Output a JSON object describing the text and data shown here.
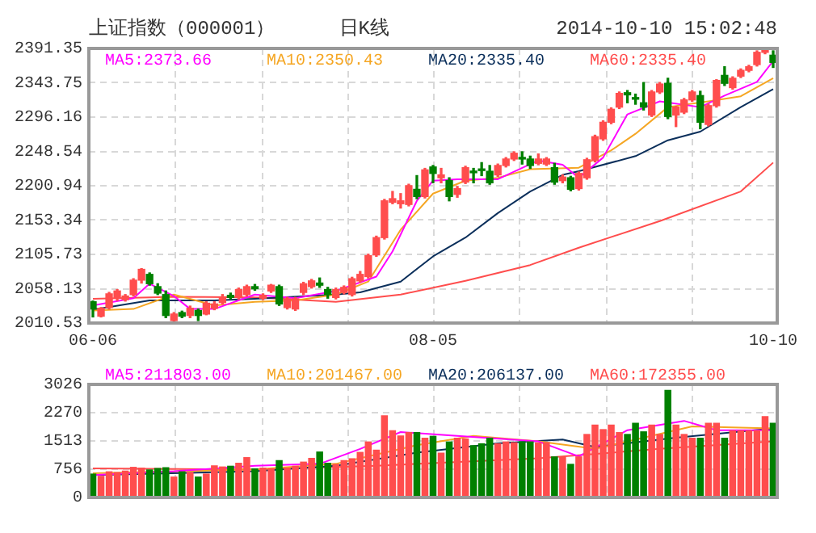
{
  "chart_data": [
    {
      "type": "candlestick",
      "title": "日K线",
      "subtitle": "上证指数（000001）",
      "annotations": [
        "2014-10-10 15:02:48"
      ],
      "categories": [
        "06-06",
        null,
        null,
        null,
        null,
        null,
        null,
        null,
        null,
        null,
        null,
        null,
        null,
        null,
        null,
        null,
        null,
        null,
        null,
        null,
        null,
        null,
        null,
        null,
        null,
        null,
        null,
        null,
        null,
        null,
        null,
        null,
        null,
        null,
        null,
        null,
        null,
        null,
        null,
        null,
        null,
        null,
        "08-05",
        null,
        null,
        null,
        null,
        null,
        null,
        null,
        null,
        null,
        null,
        null,
        null,
        null,
        null,
        null,
        null,
        null,
        null,
        null,
        null,
        null,
        null,
        null,
        null,
        null,
        null,
        null,
        null,
        null,
        null,
        null,
        null,
        null,
        null,
        null,
        null,
        null,
        null,
        null,
        null,
        null,
        "10-10"
      ],
      "ohlc": [
        [
          2040,
          2041,
          2019,
          2030
        ],
        [
          2020,
          2032,
          2019,
          2031
        ],
        [
          2032,
          2053,
          2030,
          2051
        ],
        [
          2045,
          2057,
          2042,
          2055
        ],
        [
          2043,
          2050,
          2041,
          2048
        ],
        [
          2050,
          2072,
          2048,
          2070
        ],
        [
          2070,
          2086,
          2066,
          2085
        ],
        [
          2078,
          2080,
          2063,
          2065
        ],
        [
          2061,
          2065,
          2050,
          2052
        ],
        [
          2050,
          2055,
          2018,
          2021
        ],
        [
          2014,
          2025,
          2011,
          2023
        ],
        [
          2025,
          2027,
          2018,
          2020
        ],
        [
          2021,
          2034,
          2018,
          2031
        ],
        [
          2028,
          2030,
          2014,
          2021
        ],
        [
          2023,
          2040,
          2022,
          2038
        ],
        [
          2031,
          2040,
          2029,
          2037
        ],
        [
          2039,
          2050,
          2037,
          2046
        ],
        [
          2049,
          2052,
          2044,
          2046
        ],
        [
          2046,
          2059,
          2044,
          2057
        ],
        [
          2050,
          2063,
          2048,
          2061
        ],
        [
          2061,
          2064,
          2056,
          2058
        ],
        [
          2045,
          2051,
          2043,
          2049
        ],
        [
          2055,
          2064,
          2053,
          2063
        ],
        [
          2061,
          2063,
          2035,
          2037
        ],
        [
          2032,
          2046,
          2030,
          2044
        ],
        [
          2030,
          2046,
          2028,
          2044
        ],
        [
          2053,
          2067,
          2050,
          2065
        ],
        [
          2061,
          2071,
          2059,
          2069
        ],
        [
          2066,
          2073,
          2060,
          2063
        ],
        [
          2057,
          2060,
          2045,
          2050
        ],
        [
          2046,
          2059,
          2044,
          2057
        ],
        [
          2053,
          2062,
          2051,
          2060
        ],
        [
          2050,
          2074,
          2048,
          2072
        ],
        [
          2069,
          2082,
          2067,
          2078
        ],
        [
          2075,
          2106,
          2073,
          2104
        ],
        [
          2105,
          2131,
          2103,
          2129
        ],
        [
          2129,
          2182,
          2127,
          2180
        ],
        [
          2178,
          2193,
          2176,
          2183
        ],
        [
          2176,
          2190,
          2170,
          2180
        ],
        [
          2175,
          2203,
          2173,
          2201
        ],
        [
          2196,
          2215,
          2183,
          2186
        ],
        [
          2186,
          2225,
          2184,
          2223
        ],
        [
          2227,
          2229,
          2205,
          2218
        ],
        [
          2212,
          2225,
          2205,
          2216
        ],
        [
          2208,
          2212,
          2180,
          2186
        ],
        [
          2189,
          2200,
          2185,
          2197
        ],
        [
          2206,
          2228,
          2204,
          2226
        ],
        [
          2221,
          2225,
          2205,
          2219
        ],
        [
          2224,
          2233,
          2215,
          2222
        ],
        [
          2221,
          2229,
          2203,
          2205
        ],
        [
          2216,
          2231,
          2214,
          2229
        ],
        [
          2229,
          2240,
          2227,
          2238
        ],
        [
          2238,
          2248,
          2236,
          2246
        ],
        [
          2240,
          2248,
          2231,
          2238
        ],
        [
          2238,
          2242,
          2225,
          2229
        ],
        [
          2232,
          2245,
          2230,
          2238
        ],
        [
          2231,
          2240,
          2229,
          2238
        ],
        [
          2226,
          2232,
          2203,
          2206
        ],
        [
          2208,
          2216,
          2205,
          2213
        ],
        [
          2212,
          2214,
          2194,
          2196
        ],
        [
          2197,
          2220,
          2195,
          2218
        ],
        [
          2212,
          2239,
          2210,
          2237
        ],
        [
          2236,
          2271,
          2234,
          2269
        ],
        [
          2266,
          2291,
          2264,
          2289
        ],
        [
          2289,
          2309,
          2287,
          2307
        ],
        [
          2310,
          2331,
          2308,
          2329
        ],
        [
          2330,
          2333,
          2316,
          2327
        ],
        [
          2322,
          2328,
          2314,
          2321
        ],
        [
          2316,
          2344,
          2306,
          2310
        ],
        [
          2299,
          2333,
          2297,
          2331
        ],
        [
          2331,
          2344,
          2329,
          2342
        ],
        [
          2343,
          2350,
          2294,
          2297
        ],
        [
          2299,
          2311,
          2283,
          2310
        ],
        [
          2303,
          2322,
          2301,
          2320
        ],
        [
          2320,
          2333,
          2318,
          2331
        ],
        [
          2326,
          2332,
          2280,
          2289
        ],
        [
          2286,
          2314,
          2284,
          2312
        ],
        [
          2312,
          2348,
          2310,
          2347
        ],
        [
          2354,
          2366,
          2340,
          2343
        ],
        [
          2337,
          2352,
          2335,
          2350
        ],
        [
          2353,
          2363,
          2351,
          2361
        ],
        [
          2361,
          2368,
          2359,
          2366
        ],
        [
          2369,
          2388,
          2367,
          2386
        ],
        [
          2386,
          2391,
          2384,
          2390
        ],
        [
          2382,
          2388,
          2365,
          2372
        ]
      ],
      "colors": [
        "#008000",
        "#ff4d4d",
        "#ff4d4d",
        "#ff4d4d",
        "#ff4d4d",
        "#ff4d4d",
        "#ff4d4d",
        "#008000",
        "#008000",
        "#008000",
        "#ff4d4d",
        "#008000",
        "#ff4d4d",
        "#008000",
        "#ff4d4d",
        "#ff4d4d",
        "#ff4d4d",
        "#008000",
        "#ff4d4d",
        "#ff4d4d",
        "#008000",
        "#ff4d4d",
        "#ff4d4d",
        "#008000",
        "#ff4d4d",
        "#ff4d4d",
        "#ff4d4d",
        "#ff4d4d",
        "#008000",
        "#008000",
        "#ff4d4d",
        "#ff4d4d",
        "#ff4d4d",
        "#ff4d4d",
        "#ff4d4d",
        "#ff4d4d",
        "#ff4d4d",
        "#ff4d4d",
        "#ff4d4d",
        "#ff4d4d",
        "#008000",
        "#ff4d4d",
        "#008000",
        "#ff4d4d",
        "#008000",
        "#ff4d4d",
        "#ff4d4d",
        "#008000",
        "#008000",
        "#008000",
        "#ff4d4d",
        "#ff4d4d",
        "#ff4d4d",
        "#008000",
        "#008000",
        "#ff4d4d",
        "#ff4d4d",
        "#008000",
        "#ff4d4d",
        "#008000",
        "#ff4d4d",
        "#ff4d4d",
        "#ff4d4d",
        "#ff4d4d",
        "#ff4d4d",
        "#ff4d4d",
        "#008000",
        "#008000",
        "#008000",
        "#ff4d4d",
        "#ff4d4d",
        "#008000",
        "#ff4d4d",
        "#ff4d4d",
        "#ff4d4d",
        "#008000",
        "#ff4d4d",
        "#ff4d4d",
        "#008000",
        "#ff4d4d",
        "#ff4d4d",
        "#ff4d4d",
        "#ff4d4d",
        "#ff4d4d",
        "#008000"
      ],
      "series": [
        {
          "type": "line",
          "name": "MA5:2373.66",
          "color": "#ff00ff",
          "values": [
            2035,
            null,
            null,
            null,
            null,
            2045,
            null,
            2065,
            null,
            null,
            2048,
            null,
            2030,
            null,
            null,
            2030,
            null,
            null,
            null,
            null,
            2050,
            null,
            null,
            null,
            null,
            2045,
            null,
            null,
            null,
            null,
            2055,
            null,
            null,
            null,
            null,
            2075,
            null,
            2110,
            null,
            null,
            2180,
            null,
            2208,
            null,
            null,
            2210,
            null,
            null,
            null,
            null,
            2210,
            null,
            null,
            null,
            null,
            2236,
            null,
            null,
            2230,
            null,
            2212,
            null,
            null,
            2240,
            null,
            null,
            2300,
            null,
            null,
            null,
            2318,
            null,
            null,
            null,
            null,
            2310,
            null,
            null,
            2326,
            null,
            null,
            null,
            2345,
            null,
            2374
          ]
        },
        {
          "type": "line",
          "name": "MA10:2350.43",
          "color": "#f5a623",
          "values": [
            2028,
            null,
            null,
            null,
            null,
            2030,
            null,
            null,
            null,
            null,
            2050,
            null,
            null,
            null,
            null,
            2035,
            null,
            null,
            null,
            null,
            2040,
            null,
            null,
            null,
            null,
            2042,
            null,
            null,
            null,
            null,
            2050,
            null,
            null,
            null,
            2068,
            null,
            null,
            null,
            2140,
            null,
            null,
            null,
            2190,
            null,
            null,
            null,
            2208,
            null,
            null,
            null,
            2212,
            null,
            null,
            null,
            2224,
            null,
            null,
            null,
            null,
            null,
            2226,
            null,
            null,
            null,
            2250,
            null,
            null,
            2273,
            null,
            null,
            null,
            2310,
            null,
            null,
            null,
            null,
            2318,
            null,
            null,
            null,
            2325,
            null,
            null,
            null,
            2350
          ]
        },
        {
          "type": "line",
          "name": "MA20:2335.40",
          "color": "#0b2f5b",
          "values": [
            2029,
            null,
            null,
            null,
            null,
            null,
            null,
            2042,
            null,
            null,
            null,
            null,
            null,
            null,
            null,
            2042,
            null,
            null,
            null,
            null,
            2044,
            null,
            null,
            null,
            null,
            null,
            null,
            null,
            null,
            null,
            2050,
            null,
            null,
            2053,
            null,
            null,
            null,
            null,
            2068,
            null,
            null,
            null,
            2103,
            null,
            null,
            null,
            2129,
            null,
            null,
            null,
            2163,
            null,
            null,
            null,
            2193,
            null,
            null,
            null,
            2216,
            null,
            2221,
            null,
            null,
            null,
            null,
            null,
            null,
            2242,
            null,
            null,
            null,
            2264,
            null,
            null,
            null,
            2276,
            null,
            null,
            null,
            null,
            2310,
            null,
            null,
            null,
            2335
          ]
        },
        {
          "type": "line",
          "name": "MA60:2335.40",
          "color": "#ff4d4d",
          "values": [
            2044,
            null,
            null,
            null,
            null,
            null,
            null,
            null,
            null,
            null,
            2047,
            null,
            null,
            null,
            null,
            null,
            null,
            null,
            null,
            null,
            2046,
            null,
            null,
            null,
            null,
            null,
            null,
            null,
            null,
            null,
            2040,
            null,
            null,
            null,
            null,
            null,
            null,
            null,
            2050,
            null,
            null,
            null,
            null,
            null,
            null,
            null,
            2069,
            null,
            null,
            null,
            null,
            null,
            null,
            null,
            2091,
            null,
            null,
            null,
            null,
            null,
            2115,
            null,
            null,
            null,
            null,
            null,
            null,
            null,
            null,
            null,
            2152,
            null,
            null,
            null,
            null,
            null,
            null,
            null,
            null,
            null,
            2193,
            null,
            null,
            null,
            2233
          ]
        }
      ],
      "ylim": [
        2010.53,
        2391.35
      ],
      "yticks": [
        2010.53,
        2058.13,
        2105.73,
        2153.34,
        2200.94,
        2248.54,
        2296.16,
        2343.75,
        2391.35
      ],
      "grid": true,
      "legend": "top"
    },
    {
      "type": "bar",
      "categories": [
        null,
        null,
        null,
        null,
        null,
        null,
        null,
        null,
        null,
        null,
        null,
        null,
        null,
        null,
        null,
        null,
        null,
        null,
        null,
        null,
        null,
        null,
        null,
        null,
        null,
        null,
        null,
        null,
        null,
        null,
        null,
        null,
        null,
        null,
        null,
        null,
        null,
        null,
        null,
        null,
        null,
        null,
        null,
        null,
        null,
        null,
        null,
        null,
        null,
        null,
        null,
        null,
        null,
        null,
        null,
        null,
        null,
        null,
        null,
        null,
        null,
        null,
        null,
        null,
        null,
        null,
        null,
        null,
        null,
        null,
        null,
        null,
        null,
        null,
        null,
        null,
        null,
        null,
        null,
        null,
        null,
        null,
        null,
        null,
        null
      ],
      "series": [
        {
          "colors": [
            "#008000",
            "#ff4d4d",
            "#ff4d4d",
            "#ff4d4d",
            "#ff4d4d",
            "#ff4d4d",
            "#ff4d4d",
            "#008000",
            "#008000",
            "#008000",
            "#ff4d4d",
            "#008000",
            "#ff4d4d",
            "#008000",
            "#ff4d4d",
            "#ff4d4d",
            "#ff4d4d",
            "#008000",
            "#ff4d4d",
            "#ff4d4d",
            "#008000",
            "#ff4d4d",
            "#ff4d4d",
            "#008000",
            "#ff4d4d",
            "#ff4d4d",
            "#ff4d4d",
            "#ff4d4d",
            "#008000",
            "#008000",
            "#ff4d4d",
            "#ff4d4d",
            "#ff4d4d",
            "#ff4d4d",
            "#ff4d4d",
            "#ff4d4d",
            "#ff4d4d",
            "#ff4d4d",
            "#ff4d4d",
            "#ff4d4d",
            "#008000",
            "#ff4d4d",
            "#008000",
            "#ff4d4d",
            "#008000",
            "#ff4d4d",
            "#ff4d4d",
            "#008000",
            "#008000",
            "#008000",
            "#ff4d4d",
            "#ff4d4d",
            "#ff4d4d",
            "#008000",
            "#008000",
            "#ff4d4d",
            "#ff4d4d",
            "#008000",
            "#ff4d4d",
            "#008000",
            "#ff4d4d",
            "#ff4d4d",
            "#ff4d4d",
            "#ff4d4d",
            "#ff4d4d",
            "#ff4d4d",
            "#008000",
            "#008000",
            "#008000",
            "#ff4d4d",
            "#ff4d4d",
            "#008000",
            "#ff4d4d",
            "#ff4d4d",
            "#ff4d4d",
            "#008000",
            "#ff4d4d",
            "#ff4d4d",
            "#008000",
            "#ff4d4d",
            "#ff4d4d",
            "#ff4d4d",
            "#ff4d4d",
            "#ff4d4d",
            "#008000"
          ],
          "values": [
            640,
            580,
            700,
            680,
            720,
            820,
            800,
            750,
            790,
            810,
            560,
            700,
            680,
            560,
            640,
            860,
            830,
            850,
            930,
            1080,
            780,
            800,
            780,
            1000,
            800,
            850,
            960,
            1060,
            1230,
            930,
            900,
            1000,
            1050,
            1220,
            1500,
            1280,
            2200,
            1800,
            1660,
            1750,
            1750,
            1600,
            1650,
            1200,
            1500,
            1600,
            1580,
            1400,
            1450,
            1600,
            1450,
            1500,
            1480,
            1500,
            1500,
            1470,
            1480,
            1100,
            1090,
            900,
            1100,
            1700,
            1950,
            1830,
            1950,
            1750,
            1700,
            2000,
            1770,
            1950,
            1700,
            2880,
            1950,
            1700,
            1600,
            1600,
            2000,
            2000,
            1600,
            1800,
            1800,
            1800,
            1800,
            2180,
            2000
          ]
        },
        {
          "type": "line",
          "name": "MA5:211803.00",
          "color": "#ff00ff",
          "values": [
            600,
            null,
            null,
            null,
            null,
            null,
            null,
            null,
            null,
            null,
            700,
            null,
            null,
            null,
            null,
            null,
            null,
            null,
            null,
            null,
            850,
            null,
            null,
            null,
            null,
            null,
            null,
            null,
            900,
            null,
            null,
            null,
            null,
            1300,
            null,
            null,
            null,
            null,
            1750,
            null,
            null,
            null,
            null,
            null,
            null,
            1650,
            null,
            null,
            null,
            null,
            null,
            null,
            null,
            null,
            null,
            1500,
            null,
            null,
            null,
            null,
            1100,
            null,
            null,
            null,
            null,
            null,
            1800,
            null,
            null,
            null,
            null,
            null,
            null,
            2050,
            null,
            null,
            null,
            1800,
            null,
            null,
            null,
            null,
            null,
            null,
            1800
          ]
        },
        {
          "type": "line",
          "name": "MA10:201467.00",
          "color": "#f5a623",
          "values": [
            650,
            null,
            null,
            null,
            null,
            null,
            null,
            null,
            null,
            null,
            null,
            null,
            null,
            null,
            null,
            null,
            null,
            null,
            null,
            null,
            750,
            null,
            null,
            null,
            null,
            null,
            null,
            null,
            null,
            null,
            900,
            null,
            null,
            null,
            null,
            null,
            null,
            null,
            null,
            null,
            1400,
            null,
            null,
            null,
            null,
            null,
            null,
            1650,
            null,
            null,
            null,
            null,
            null,
            null,
            null,
            1500,
            null,
            null,
            null,
            null,
            null,
            null,
            1300,
            null,
            null,
            null,
            null,
            null,
            null,
            null,
            null,
            null,
            null,
            null,
            1900,
            null,
            null,
            null,
            null,
            null,
            null,
            null,
            null,
            null,
            1850
          ]
        },
        {
          "type": "line",
          "name": "MA20:206137.00",
          "color": "#0b2f5b",
          "values": [
            600,
            null,
            null,
            null,
            null,
            null,
            null,
            null,
            null,
            null,
            null,
            null,
            null,
            null,
            null,
            null,
            null,
            null,
            null,
            null,
            700,
            null,
            null,
            null,
            null,
            null,
            null,
            null,
            null,
            null,
            850,
            null,
            null,
            null,
            null,
            null,
            null,
            null,
            null,
            null,
            1200,
            null,
            null,
            null,
            null,
            null,
            null,
            null,
            null,
            null,
            1450,
            null,
            null,
            null,
            null,
            null,
            null,
            null,
            1550,
            null,
            null,
            null,
            1350,
            null,
            null,
            null,
            null,
            null,
            null,
            null,
            null,
            null,
            1600,
            null,
            null,
            null,
            null,
            null,
            null,
            null,
            null,
            null,
            null,
            null,
            1850
          ]
        },
        {
          "type": "line",
          "name": "MA60:172355.00",
          "color": "#ff4d4d",
          "values": [
            780,
            null,
            null,
            null,
            null,
            null,
            null,
            null,
            null,
            null,
            null,
            null,
            null,
            null,
            null,
            null,
            null,
            null,
            null,
            null,
            750,
            null,
            null,
            null,
            null,
            null,
            null,
            null,
            null,
            null,
            null,
            null,
            null,
            null,
            null,
            850,
            null,
            null,
            null,
            null,
            null,
            null,
            null,
            null,
            null,
            null,
            null,
            null,
            null,
            null,
            null,
            null,
            null,
            null,
            null,
            1050,
            null,
            null,
            null,
            null,
            null,
            null,
            null,
            null,
            null,
            null,
            null,
            null,
            null,
            null,
            1300,
            null,
            null,
            null,
            null,
            null,
            null,
            null,
            null,
            null,
            null,
            null,
            null,
            null,
            1500
          ]
        }
      ],
      "ylim": [
        0,
        3026
      ],
      "yticks": [
        0,
        756,
        1513,
        2270,
        3026
      ],
      "grid": true,
      "legend": "top"
    }
  ]
}
